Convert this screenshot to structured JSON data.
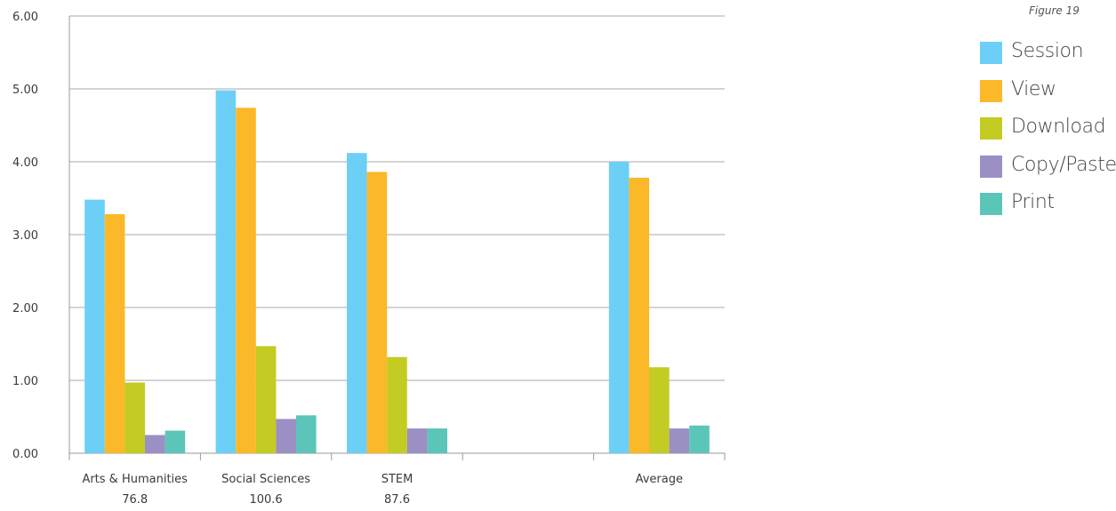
{
  "figure_label": "Figure 19",
  "colors": {
    "grid": "#a9a9a9",
    "axis": "#9a9a9a",
    "text": "#3a3a3a"
  },
  "chart_data": {
    "type": "bar",
    "title": "",
    "xlabel": "",
    "ylabel": "",
    "ylim": [
      0,
      6
    ],
    "yticks": [
      "0.00",
      "1.00",
      "2.00",
      "3.00",
      "4.00",
      "5.00",
      "6.00"
    ],
    "grid": true,
    "legend_position": "right",
    "categories": [
      {
        "label": "Arts & Humanities",
        "sublabel": "76.8"
      },
      {
        "label": "Social Sciences",
        "sublabel": "100.6"
      },
      {
        "label": "STEM",
        "sublabel": "87.6"
      },
      {
        "label": "",
        "sublabel": ""
      },
      {
        "label": "Average",
        "sublabel": ""
      }
    ],
    "series": [
      {
        "name": "Session",
        "color": "#6ccff6",
        "values": [
          3.48,
          4.98,
          4.12,
          null,
          4.0
        ]
      },
      {
        "name": "View",
        "color": "#fbb829",
        "values": [
          3.28,
          4.74,
          3.86,
          null,
          3.78
        ]
      },
      {
        "name": "Download",
        "color": "#c3cc22",
        "values": [
          0.97,
          1.47,
          1.32,
          null,
          1.18
        ]
      },
      {
        "name": "Copy/Paste",
        "color": "#9b8fc4",
        "values": [
          0.25,
          0.47,
          0.34,
          null,
          0.34
        ]
      },
      {
        "name": "Print",
        "color": "#5bc5b9",
        "values": [
          0.31,
          0.52,
          0.34,
          null,
          0.38
        ]
      }
    ]
  }
}
